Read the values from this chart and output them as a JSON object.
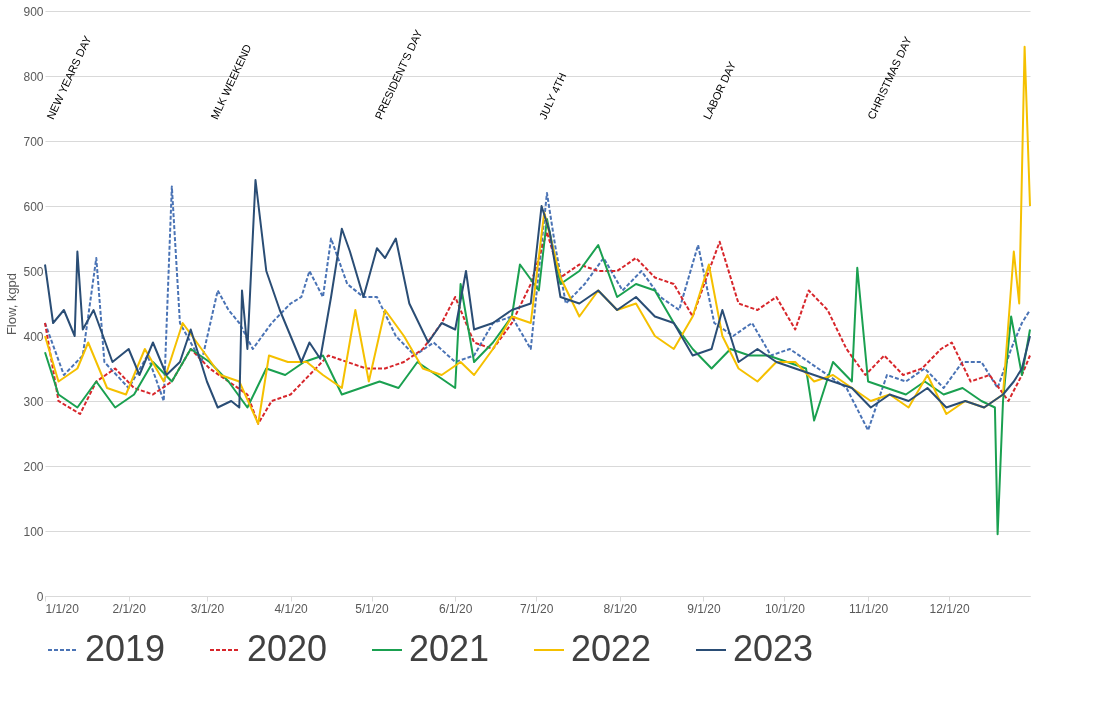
{
  "chart_data": {
    "type": "line",
    "ylabel": "Flow, kgpd",
    "xlim": [
      "2020-01-01",
      "2020-12-31"
    ],
    "ylim": [
      0,
      900
    ],
    "yticks": [
      0,
      100,
      200,
      300,
      400,
      500,
      600,
      700,
      800,
      900
    ],
    "xticks": [
      {
        "value": "2020-01-01",
        "label": "1/1/20"
      },
      {
        "value": "2020-02-01",
        "label": "2/1/20"
      },
      {
        "value": "2020-03-01",
        "label": "3/1/20"
      },
      {
        "value": "2020-04-01",
        "label": "4/1/20"
      },
      {
        "value": "2020-05-01",
        "label": "5/1/20"
      },
      {
        "value": "2020-06-01",
        "label": "6/1/20"
      },
      {
        "value": "2020-07-01",
        "label": "7/1/20"
      },
      {
        "value": "2020-08-01",
        "label": "8/1/20"
      },
      {
        "value": "2020-09-01",
        "label": "9/1/20"
      },
      {
        "value": "2020-10-01",
        "label": "10/1/20"
      },
      {
        "value": "2020-11-01",
        "label": "11/1/20"
      },
      {
        "value": "2020-12-01",
        "label": "12/1/20"
      }
    ],
    "grid": "y",
    "legend": "bottom",
    "marker": "none",
    "annotations": [
      "NEW YEARS DAY",
      "MLK WEEKEND",
      "PRESIDENT'S DAY",
      "JULY 4TH",
      "LABOR DAY",
      "CHRISTMAS DAY"
    ],
    "series": [
      {
        "name": "2019",
        "color": "#4a73b5",
        "line_style": "dashed",
        "x": [
          "2020-01-01",
          "2020-01-08",
          "2020-01-15",
          "2020-01-20",
          "2020-01-23",
          "2020-02-01",
          "2020-02-08",
          "2020-02-14",
          "2020-02-17",
          "2020-02-20",
          "2020-02-28",
          "2020-03-05",
          "2020-03-09",
          "2020-03-13",
          "2020-03-18",
          "2020-03-25",
          "2020-04-01",
          "2020-04-05",
          "2020-04-08",
          "2020-04-13",
          "2020-04-16",
          "2020-04-22",
          "2020-04-28",
          "2020-05-03",
          "2020-05-10",
          "2020-05-17",
          "2020-05-24",
          "2020-06-01",
          "2020-06-08",
          "2020-06-15",
          "2020-06-22",
          "2020-06-29",
          "2020-07-05",
          "2020-07-08",
          "2020-07-12",
          "2020-07-19",
          "2020-07-26",
          "2020-08-02",
          "2020-08-09",
          "2020-08-16",
          "2020-08-23",
          "2020-08-30",
          "2020-09-05",
          "2020-09-12",
          "2020-09-19",
          "2020-09-26",
          "2020-10-03",
          "2020-10-10",
          "2020-10-17",
          "2020-10-24",
          "2020-11-01",
          "2020-11-08",
          "2020-11-15",
          "2020-11-22",
          "2020-11-29",
          "2020-12-06",
          "2020-12-13",
          "2020-12-19",
          "2020-12-24",
          "2020-12-28",
          "2020-12-31"
        ],
        "values": [
          420,
          340,
          370,
          520,
          360,
          320,
          370,
          300,
          630,
          420,
          360,
          470,
          440,
          420,
          380,
          420,
          450,
          460,
          500,
          460,
          550,
          480,
          460,
          460,
          400,
          370,
          390,
          360,
          370,
          420,
          430,
          380,
          620,
          540,
          450,
          480,
          520,
          470,
          500,
          460,
          440,
          540,
          420,
          400,
          420,
          370,
          380,
          360,
          340,
          320,
          255,
          340,
          330,
          350,
          320,
          360,
          360,
          320,
          380,
          420,
          440
        ]
      },
      {
        "name": "2020",
        "color": "#d7262b",
        "line_style": "dashed",
        "x": [
          "2020-01-01",
          "2020-01-06",
          "2020-01-14",
          "2020-01-20",
          "2020-01-27",
          "2020-02-03",
          "2020-02-10",
          "2020-02-17",
          "2020-02-24",
          "2020-03-02",
          "2020-03-09",
          "2020-03-16",
          "2020-03-20",
          "2020-03-25",
          "2020-04-01",
          "2020-04-08",
          "2020-04-15",
          "2020-04-22",
          "2020-04-29",
          "2020-05-06",
          "2020-05-13",
          "2020-05-20",
          "2020-05-27",
          "2020-06-01",
          "2020-06-08",
          "2020-06-15",
          "2020-06-22",
          "2020-06-29",
          "2020-07-05",
          "2020-07-10",
          "2020-07-17",
          "2020-07-24",
          "2020-07-31",
          "2020-08-07",
          "2020-08-14",
          "2020-08-21",
          "2020-08-28",
          "2020-09-03",
          "2020-09-07",
          "2020-09-14",
          "2020-09-21",
          "2020-09-28",
          "2020-10-05",
          "2020-10-10",
          "2020-10-17",
          "2020-10-24",
          "2020-10-31",
          "2020-11-07",
          "2020-11-14",
          "2020-11-21",
          "2020-11-28",
          "2020-12-02",
          "2020-12-09",
          "2020-12-16",
          "2020-12-23",
          "2020-12-28",
          "2020-12-31"
        ],
        "values": [
          420,
          300,
          280,
          330,
          350,
          320,
          310,
          330,
          380,
          350,
          330,
          310,
          265,
          300,
          310,
          340,
          370,
          360,
          350,
          350,
          360,
          380,
          420,
          460,
          390,
          380,
          420,
          480,
          560,
          490,
          510,
          500,
          500,
          520,
          490,
          480,
          430,
          500,
          545,
          450,
          440,
          460,
          410,
          470,
          440,
          380,
          340,
          370,
          340,
          350,
          380,
          390,
          330,
          340,
          300,
          340,
          370
        ]
      },
      {
        "name": "2021",
        "color": "#1aa050",
        "line_style": "solid",
        "x": [
          "2020-01-01",
          "2020-01-06",
          "2020-01-13",
          "2020-01-20",
          "2020-01-27",
          "2020-02-03",
          "2020-02-10",
          "2020-02-17",
          "2020-02-24",
          "2020-03-02",
          "2020-03-09",
          "2020-03-16",
          "2020-03-23",
          "2020-03-30",
          "2020-04-06",
          "2020-04-13",
          "2020-04-20",
          "2020-04-27",
          "2020-05-04",
          "2020-05-11",
          "2020-05-18",
          "2020-05-25",
          "2020-06-01",
          "2020-06-03",
          "2020-06-08",
          "2020-06-15",
          "2020-06-22",
          "2020-06-25",
          "2020-07-02",
          "2020-07-05",
          "2020-07-10",
          "2020-07-17",
          "2020-07-24",
          "2020-07-31",
          "2020-08-07",
          "2020-08-14",
          "2020-08-21",
          "2020-08-28",
          "2020-09-04",
          "2020-09-11",
          "2020-09-18",
          "2020-09-25",
          "2020-10-02",
          "2020-10-09",
          "2020-10-12",
          "2020-10-19",
          "2020-10-26",
          "2020-10-28",
          "2020-11-01",
          "2020-11-08",
          "2020-11-15",
          "2020-11-22",
          "2020-11-29",
          "2020-12-06",
          "2020-12-13",
          "2020-12-18",
          "2020-12-19",
          "2020-12-21",
          "2020-12-24",
          "2020-12-28",
          "2020-12-31"
        ],
        "values": [
          375,
          310,
          290,
          330,
          290,
          310,
          360,
          330,
          380,
          360,
          330,
          290,
          350,
          340,
          360,
          370,
          310,
          320,
          330,
          320,
          360,
          340,
          320,
          480,
          360,
          390,
          430,
          510,
          470,
          580,
          480,
          500,
          540,
          460,
          480,
          470,
          420,
          380,
          350,
          380,
          370,
          370,
          360,
          350,
          270,
          360,
          330,
          505,
          330,
          320,
          310,
          330,
          310,
          320,
          300,
          290,
          95,
          300,
          430,
          340,
          410
        ]
      },
      {
        "name": "2022",
        "color": "#f5c000",
        "line_style": "solid",
        "x": [
          "2020-01-01",
          "2020-01-06",
          "2020-01-13",
          "2020-01-17",
          "2020-01-24",
          "2020-01-31",
          "2020-02-07",
          "2020-02-14",
          "2020-02-21",
          "2020-02-28",
          "2020-03-06",
          "2020-03-13",
          "2020-03-20",
          "2020-03-24",
          "2020-03-31",
          "2020-04-07",
          "2020-04-13",
          "2020-04-20",
          "2020-04-25",
          "2020-04-30",
          "2020-05-06",
          "2020-05-13",
          "2020-05-20",
          "2020-05-27",
          "2020-06-03",
          "2020-06-08",
          "2020-06-15",
          "2020-06-22",
          "2020-06-29",
          "2020-07-04",
          "2020-07-10",
          "2020-07-17",
          "2020-07-24",
          "2020-07-31",
          "2020-08-07",
          "2020-08-14",
          "2020-08-21",
          "2020-08-28",
          "2020-09-03",
          "2020-09-08",
          "2020-09-14",
          "2020-09-21",
          "2020-09-28",
          "2020-10-05",
          "2020-10-12",
          "2020-10-19",
          "2020-10-26",
          "2020-11-02",
          "2020-11-09",
          "2020-11-16",
          "2020-11-23",
          "2020-11-30",
          "2020-12-07",
          "2020-12-14",
          "2020-12-21",
          "2020-12-25",
          "2020-12-27",
          "2020-12-29",
          "2020-12-31"
        ],
        "values": [
          400,
          330,
          350,
          390,
          320,
          310,
          380,
          330,
          420,
          380,
          340,
          330,
          265,
          370,
          360,
          360,
          340,
          320,
          440,
          330,
          440,
          400,
          350,
          340,
          360,
          340,
          380,
          430,
          420,
          590,
          490,
          430,
          470,
          440,
          450,
          400,
          380,
          430,
          510,
          400,
          350,
          330,
          360,
          360,
          330,
          340,
          320,
          300,
          310,
          290,
          340,
          280,
          300,
          290,
          310,
          530,
          450,
          845,
          600
        ]
      },
      {
        "name": "2023",
        "color": "#2a4d75",
        "line_style": "solid",
        "x": [
          "2020-01-01",
          "2020-01-04",
          "2020-01-08",
          "2020-01-12",
          "2020-01-13",
          "2020-01-15",
          "2020-01-19",
          "2020-01-26",
          "2020-02-01",
          "2020-02-05",
          "2020-02-10",
          "2020-02-15",
          "2020-02-20",
          "2020-02-24",
          "2020-03-01",
          "2020-03-05",
          "2020-03-10",
          "2020-03-13",
          "2020-03-14",
          "2020-03-16",
          "2020-03-19",
          "2020-03-23",
          "2020-03-28",
          "2020-04-01",
          "2020-04-05",
          "2020-04-08",
          "2020-04-12",
          "2020-04-16",
          "2020-04-20",
          "2020-04-23",
          "2020-04-28",
          "2020-05-03",
          "2020-05-06",
          "2020-05-10",
          "2020-05-15",
          "2020-05-22",
          "2020-05-27",
          "2020-06-01",
          "2020-06-05",
          "2020-06-08",
          "2020-06-15",
          "2020-06-22",
          "2020-06-29",
          "2020-07-03",
          "2020-07-06",
          "2020-07-10",
          "2020-07-17",
          "2020-07-24",
          "2020-07-31",
          "2020-08-07",
          "2020-08-14",
          "2020-08-21",
          "2020-08-28",
          "2020-09-04",
          "2020-09-08",
          "2020-09-14",
          "2020-09-21",
          "2020-09-28",
          "2020-10-05",
          "2020-10-12",
          "2020-10-19",
          "2020-10-26",
          "2020-11-02",
          "2020-11-09",
          "2020-11-16",
          "2020-11-23",
          "2020-11-30",
          "2020-12-07",
          "2020-12-14",
          "2020-12-21",
          "2020-12-25",
          "2020-12-28",
          "2020-12-31"
        ],
        "values": [
          510,
          420,
          440,
          400,
          530,
          410,
          440,
          360,
          380,
          340,
          390,
          340,
          360,
          410,
          330,
          290,
          300,
          290,
          470,
          380,
          640,
          500,
          440,
          400,
          360,
          390,
          365,
          460,
          565,
          530,
          460,
          535,
          520,
          550,
          450,
          390,
          420,
          410,
          500,
          410,
          420,
          440,
          450,
          600,
          560,
          460,
          450,
          470,
          440,
          460,
          430,
          420,
          370,
          380,
          440,
          360,
          380,
          360,
          350,
          340,
          330,
          320,
          290,
          310,
          300,
          320,
          290,
          300,
          290,
          310,
          330,
          350,
          400
        ]
      }
    ]
  }
}
